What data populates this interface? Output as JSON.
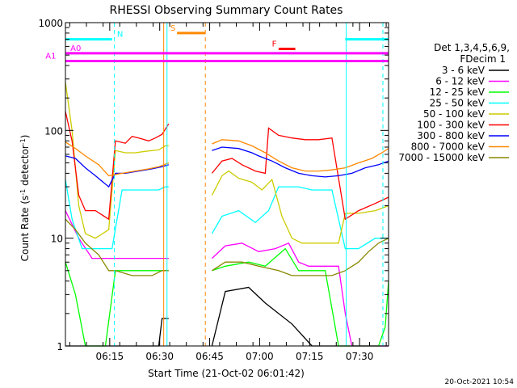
{
  "chart_data": {
    "type": "line",
    "title": "RHESSI Observing Summary Count Rates",
    "xlabel": "Start Time (21-Oct-02 06:01:42)",
    "ylabel_main": "Count Rate (s",
    "ylabel_sup1": "-1",
    "ylabel_mid": " detector",
    "ylabel_sup2": "-1",
    "ylabel_end": ")",
    "yscale": "log",
    "ylim": [
      1,
      1000
    ],
    "xlim": [
      0,
      97
    ],
    "xtick_labels": [
      "06:15",
      "06:30",
      "06:45",
      "07:00",
      "07:15",
      "07:30"
    ],
    "xtick_minutes": [
      13.3,
      28.3,
      43.3,
      58.3,
      73.3,
      88.3
    ],
    "ytick_labels": [
      "1",
      "10",
      "100",
      "1000"
    ],
    "ytick_values": [
      1,
      10,
      100,
      1000
    ],
    "legend_header": [
      "Det 1,3,4,5,6,9,",
      "FDecim 1"
    ],
    "footer_date": "20-Oct-2021 10:54",
    "gaps": [
      [
        31,
        44
      ]
    ],
    "series": [
      {
        "name": "3 - 6 keV",
        "color": "#000000",
        "values": [
          [
            0,
            1
          ],
          [
            28,
            1
          ],
          [
            29,
            1.8
          ],
          [
            31,
            1.8
          ],
          [
            44,
            1
          ],
          [
            48,
            3.2
          ],
          [
            55,
            3.5
          ],
          [
            60,
            2.5
          ],
          [
            68,
            1.6
          ],
          [
            74,
            1
          ],
          [
            97,
            1
          ]
        ]
      },
      {
        "name": "6 - 12 keV",
        "color": "#ff00ff",
        "values": [
          [
            0,
            18
          ],
          [
            4,
            10
          ],
          [
            8,
            6.5
          ],
          [
            12,
            6.5
          ],
          [
            20,
            6.5
          ],
          [
            28,
            6.5
          ],
          [
            31,
            6.5
          ],
          [
            44,
            6.5
          ],
          [
            48,
            8.5
          ],
          [
            53,
            9
          ],
          [
            58,
            7.5
          ],
          [
            63,
            8
          ],
          [
            67,
            9
          ],
          [
            70,
            6
          ],
          [
            73,
            5.5
          ],
          [
            78,
            5.5
          ],
          [
            82,
            5.5
          ],
          [
            84,
            2
          ],
          [
            86,
            1
          ],
          [
            97,
            1
          ]
        ]
      },
      {
        "name": "12 - 25 keV",
        "color": "#00ff00",
        "values": [
          [
            0,
            6
          ],
          [
            3,
            3
          ],
          [
            6,
            1
          ],
          [
            12,
            1
          ],
          [
            15,
            5
          ],
          [
            20,
            5
          ],
          [
            25,
            5
          ],
          [
            31,
            5
          ],
          [
            44,
            5
          ],
          [
            48,
            5.5
          ],
          [
            55,
            6
          ],
          [
            60,
            5.5
          ],
          [
            66,
            8
          ],
          [
            70,
            5
          ],
          [
            78,
            5
          ],
          [
            82,
            1
          ],
          [
            89,
            1
          ],
          [
            94,
            1
          ],
          [
            96,
            1.5
          ],
          [
            97,
            4
          ]
        ]
      },
      {
        "name": "25 - 50 keV",
        "color": "#00ffff",
        "values": [
          [
            0,
            35
          ],
          [
            2,
            15
          ],
          [
            5,
            8
          ],
          [
            9,
            8
          ],
          [
            14,
            8
          ],
          [
            17,
            28
          ],
          [
            22,
            28
          ],
          [
            28,
            28
          ],
          [
            30,
            30
          ],
          [
            31,
            30
          ],
          [
            44,
            11
          ],
          [
            47,
            16
          ],
          [
            52,
            18
          ],
          [
            57,
            14
          ],
          [
            61,
            18
          ],
          [
            64,
            30
          ],
          [
            70,
            30
          ],
          [
            74,
            28
          ],
          [
            80,
            28
          ],
          [
            84,
            8
          ],
          [
            88,
            8
          ],
          [
            93,
            10
          ],
          [
            97,
            10
          ]
        ]
      },
      {
        "name": "50 - 100 keV",
        "color": "#cccc00",
        "values": [
          [
            0,
            280
          ],
          [
            2,
            100
          ],
          [
            4,
            20
          ],
          [
            6,
            11
          ],
          [
            9,
            10
          ],
          [
            13,
            12
          ],
          [
            15,
            65
          ],
          [
            18,
            62
          ],
          [
            21,
            62
          ],
          [
            24,
            64
          ],
          [
            28,
            66
          ],
          [
            30,
            72
          ],
          [
            31,
            72
          ],
          [
            44,
            25
          ],
          [
            47,
            38
          ],
          [
            49,
            42
          ],
          [
            52,
            36
          ],
          [
            56,
            33
          ],
          [
            59,
            28
          ],
          [
            62,
            35
          ],
          [
            65,
            16
          ],
          [
            68,
            10
          ],
          [
            71,
            9
          ],
          [
            78,
            9
          ],
          [
            82,
            9
          ],
          [
            84,
            17
          ],
          [
            88,
            17
          ],
          [
            93,
            18
          ],
          [
            97,
            20
          ]
        ]
      },
      {
        "name": "100 - 300 keV",
        "color": "#ff0000",
        "values": [
          [
            0,
            150
          ],
          [
            2,
            80
          ],
          [
            4,
            25
          ],
          [
            6,
            18
          ],
          [
            9,
            18
          ],
          [
            13,
            15
          ],
          [
            15,
            80
          ],
          [
            18,
            76
          ],
          [
            20,
            88
          ],
          [
            22,
            85
          ],
          [
            25,
            80
          ],
          [
            27,
            85
          ],
          [
            29,
            92
          ],
          [
            31,
            115
          ],
          [
            44,
            40
          ],
          [
            47,
            52
          ],
          [
            50,
            55
          ],
          [
            53,
            48
          ],
          [
            57,
            42
          ],
          [
            60,
            40
          ],
          [
            61,
            105
          ],
          [
            64,
            90
          ],
          [
            68,
            85
          ],
          [
            72,
            82
          ],
          [
            76,
            82
          ],
          [
            80,
            85
          ],
          [
            84,
            15
          ],
          [
            88,
            18
          ],
          [
            93,
            21
          ],
          [
            97,
            24
          ]
        ]
      },
      {
        "name": "300 - 800 keV",
        "color": "#0000ff",
        "values": [
          [
            0,
            58
          ],
          [
            3,
            55
          ],
          [
            6,
            45
          ],
          [
            9,
            38
          ],
          [
            13,
            30
          ],
          [
            15,
            40
          ],
          [
            18,
            40
          ],
          [
            22,
            42
          ],
          [
            26,
            44
          ],
          [
            29,
            46
          ],
          [
            31,
            48
          ],
          [
            44,
            65
          ],
          [
            47,
            70
          ],
          [
            52,
            68
          ],
          [
            56,
            62
          ],
          [
            58,
            58
          ],
          [
            62,
            52
          ],
          [
            66,
            45
          ],
          [
            70,
            40
          ],
          [
            74,
            38
          ],
          [
            78,
            37
          ],
          [
            82,
            38
          ],
          [
            86,
            40
          ],
          [
            90,
            45
          ],
          [
            94,
            48
          ],
          [
            97,
            52
          ]
        ]
      },
      {
        "name": "800 - 7000 keV",
        "color": "#ff8800",
        "values": [
          [
            0,
            78
          ],
          [
            3,
            68
          ],
          [
            6,
            58
          ],
          [
            10,
            48
          ],
          [
            13,
            38
          ],
          [
            17,
            40
          ],
          [
            21,
            42
          ],
          [
            25,
            44
          ],
          [
            28,
            46
          ],
          [
            31,
            50
          ],
          [
            44,
            75
          ],
          [
            47,
            82
          ],
          [
            52,
            80
          ],
          [
            56,
            72
          ],
          [
            60,
            62
          ],
          [
            64,
            52
          ],
          [
            68,
            45
          ],
          [
            72,
            42
          ],
          [
            76,
            42
          ],
          [
            80,
            43
          ],
          [
            84,
            45
          ],
          [
            88,
            50
          ],
          [
            92,
            55
          ],
          [
            95,
            62
          ],
          [
            97,
            68
          ]
        ]
      },
      {
        "name": "7000 - 15000 keV",
        "color": "#888800",
        "values": [
          [
            0,
            15
          ],
          [
            3,
            12
          ],
          [
            6,
            9
          ],
          [
            10,
            7
          ],
          [
            13,
            5
          ],
          [
            15,
            5
          ],
          [
            20,
            4.5
          ],
          [
            26,
            4.5
          ],
          [
            29,
            5
          ],
          [
            31,
            5
          ],
          [
            44,
            5
          ],
          [
            48,
            6
          ],
          [
            53,
            6
          ],
          [
            58,
            5.5
          ],
          [
            64,
            5
          ],
          [
            68,
            4.5
          ],
          [
            72,
            4.5
          ],
          [
            76,
            4.5
          ],
          [
            80,
            4.5
          ],
          [
            84,
            5
          ],
          [
            88,
            6
          ],
          [
            91,
            7.5
          ],
          [
            94,
            9
          ],
          [
            97,
            10
          ]
        ]
      }
    ],
    "markers": [
      {
        "label": "N",
        "color": "#00ffff",
        "segments": [
          [
            0,
            14
          ],
          [
            84,
            97
          ]
        ],
        "level": 700,
        "label_at": 15.5
      },
      {
        "label": "A0",
        "color": "#ff00ff",
        "segments": [
          [
            0,
            97
          ]
        ],
        "level": 520,
        "label_at": 1.5
      },
      {
        "label": "A1",
        "color": "#ff00ff",
        "segments": [
          [
            0,
            97
          ]
        ],
        "level": 440,
        "label_at": -6
      },
      {
        "label": "S",
        "color": "#ff8800",
        "segments": [
          [
            33.5,
            42
          ]
        ],
        "level": 800,
        "label_at": 31.5
      },
      {
        "label": "F",
        "color": "#ff0000",
        "segments": [
          [
            64,
            69
          ]
        ],
        "level": 570,
        "label_at": 62
      }
    ],
    "vlines": [
      {
        "x": 14.7,
        "color": "#00ffff",
        "dash": true
      },
      {
        "x": 29.5,
        "color": "#ff8800",
        "dash": false
      },
      {
        "x": 30.5,
        "color": "#00ffff",
        "dash": false
      },
      {
        "x": 42.0,
        "color": "#ff8800",
        "dash": true
      },
      {
        "x": 84.3,
        "color": "#00ffff",
        "dash": false
      },
      {
        "x": 95.3,
        "color": "#00ffff",
        "dash": true
      }
    ]
  }
}
